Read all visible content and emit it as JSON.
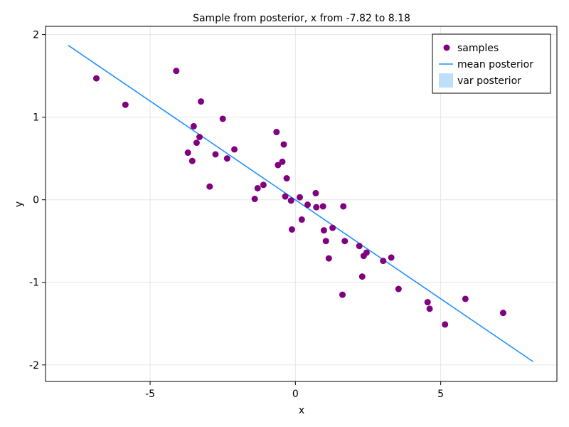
{
  "chart_data": {
    "type": "scatter",
    "title": "Sample from posterior, x from -7.82 to 8.18",
    "xlabel": "x",
    "ylabel": "y",
    "xlim": [
      -8.6,
      9.0
    ],
    "ylim": [
      -2.2,
      2.1
    ],
    "xticks": [
      -5,
      0,
      5
    ],
    "xtick_labels": [
      "-5",
      "0",
      "5"
    ],
    "yticks": [
      -2,
      -1,
      0,
      1,
      2
    ],
    "ytick_labels": [
      "-2",
      "-1",
      "0",
      "1",
      "2"
    ],
    "grid": true,
    "legend_position": "top-right",
    "legend": [
      "samples",
      "mean posterior",
      "var posterior"
    ],
    "colors": {
      "samples": "#800080",
      "mean": "#1e90ff",
      "var": "#bddff9"
    },
    "samples": {
      "name": "samples",
      "x": [
        -6.85,
        -5.85,
        -4.1,
        -3.25,
        -3.5,
        -3.3,
        -3.4,
        -2.5,
        -3.7,
        -2.75,
        -3.55,
        -2.35,
        -2.1,
        -2.95,
        -1.4,
        -1.3,
        -1.1,
        -0.65,
        -0.45,
        -0.6,
        -0.4,
        -0.35,
        -0.3,
        -0.15,
        -0.12,
        0.15,
        0.22,
        0.42,
        0.7,
        0.72,
        0.95,
        0.98,
        1.05,
        1.15,
        1.28,
        1.62,
        1.65,
        1.7,
        2.2,
        2.35,
        2.45,
        2.3,
        3.02,
        3.3,
        3.55,
        4.55,
        4.62,
        5.15,
        5.85,
        7.15
      ],
      "y": [
        1.47,
        1.15,
        1.56,
        1.19,
        0.89,
        0.76,
        0.69,
        0.98,
        0.57,
        0.55,
        0.47,
        0.5,
        0.61,
        0.16,
        0.01,
        0.14,
        0.18,
        0.82,
        0.46,
        0.42,
        0.67,
        0.04,
        0.26,
        -0.01,
        -0.36,
        0.03,
        -0.24,
        -0.06,
        0.08,
        -0.09,
        -0.08,
        -0.37,
        -0.5,
        -0.71,
        -0.34,
        -1.15,
        -0.08,
        -0.5,
        -0.56,
        -0.68,
        -0.64,
        -0.93,
        -0.74,
        -0.7,
        -1.08,
        -1.24,
        -1.32,
        -1.51,
        -1.2,
        -1.37
      ]
    },
    "mean_posterior": {
      "name": "mean posterior",
      "x": [
        -7.82,
        8.18
      ],
      "y": [
        1.87,
        -1.96
      ]
    }
  }
}
